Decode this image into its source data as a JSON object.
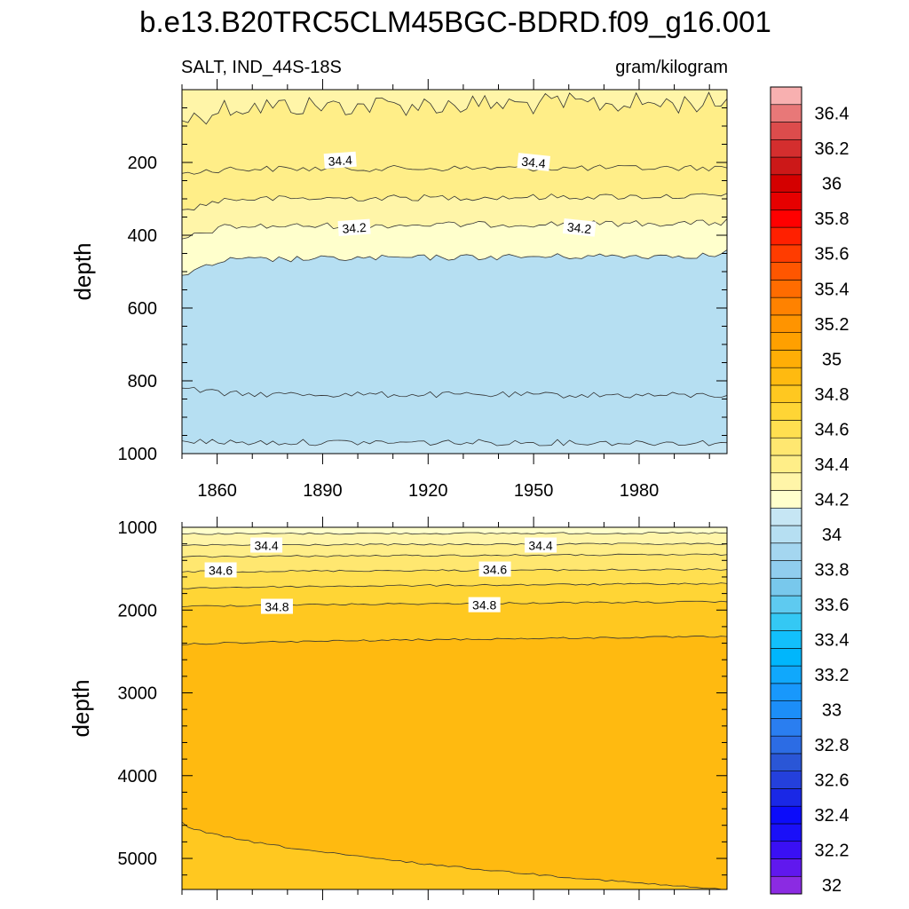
{
  "title": "b.e13.B20TRC5CLM45BGC-BDRD.f09_g16.001",
  "chart_data": [
    {
      "type": "contour",
      "panel": "upper",
      "left_string": "SALT, IND_44S-18S",
      "right_string": "gram/kilogram",
      "ylabel": "depth",
      "xlabel": "",
      "xlim": [
        1850,
        2005
      ],
      "ylim": [
        0,
        1000
      ],
      "y_reversed": true,
      "x_ticks": [
        1860,
        1890,
        1920,
        1950,
        1980
      ],
      "y_ticks": [
        200,
        400,
        600,
        800,
        1000
      ],
      "contour_lines": [
        {
          "level": 34.4,
          "depth_start": 85,
          "depth_end": 25,
          "depth_mean": 40
        },
        {
          "level": 34.4,
          "depth_start": 230,
          "depth_end": 215,
          "depth_mean": 215
        },
        {
          "level": 34.3,
          "depth_start": 330,
          "depth_end": 285,
          "depth_mean": 295
        },
        {
          "level": 34.2,
          "depth_start": 410,
          "depth_end": 355,
          "depth_mean": 370
        },
        {
          "level": 34.1,
          "depth_start": 510,
          "depth_end": 440,
          "depth_mean": 460
        },
        {
          "level": 34.1,
          "depth_start": 820,
          "depth_end": 840,
          "depth_mean": 840
        },
        {
          "level": 34.2,
          "depth_start": 965,
          "depth_end": 970,
          "depth_mean": 970
        }
      ],
      "contour_labels": [
        {
          "text": "34.4",
          "x": 1895,
          "depth": 195
        },
        {
          "text": "34.4",
          "x": 1950,
          "depth": 200
        },
        {
          "text": "34.2",
          "x": 1899,
          "depth": 380
        },
        {
          "text": "34.2",
          "x": 1963,
          "depth": 380
        }
      ]
    },
    {
      "type": "contour",
      "panel": "lower",
      "ylabel": "depth",
      "xlabel": "",
      "xlim": [
        1850,
        2005
      ],
      "ylim": [
        1000,
        5375
      ],
      "y_reversed": true,
      "y_ticks": [
        1000,
        2000,
        3000,
        4000,
        5000
      ],
      "contour_lines": [
        {
          "level": 34.3,
          "depth_start": 1080,
          "depth_end": 1070
        },
        {
          "level": 34.4,
          "depth_start": 1220,
          "depth_end": 1200
        },
        {
          "level": 34.5,
          "depth_start": 1360,
          "depth_end": 1330
        },
        {
          "level": 34.6,
          "depth_start": 1540,
          "depth_end": 1510
        },
        {
          "level": 34.7,
          "depth_start": 1740,
          "depth_end": 1680
        },
        {
          "level": 34.8,
          "depth_start": 1960,
          "depth_end": 1900
        },
        {
          "level": 34.9,
          "depth_start": 2420,
          "depth_end": 2320
        },
        {
          "level": 34.8,
          "depth_start": 4560,
          "depth_end": 5380
        }
      ],
      "contour_labels": [
        {
          "text": "34.4",
          "x": 1874,
          "depth": 1220
        },
        {
          "text": "34.4",
          "x": 1952,
          "depth": 1220
        },
        {
          "text": "34.6",
          "x": 1861,
          "depth": 1520
        },
        {
          "text": "34.6",
          "x": 1939,
          "depth": 1510
        },
        {
          "text": "34.8",
          "x": 1877,
          "depth": 1960
        },
        {
          "text": "34.8",
          "x": 1936,
          "depth": 1940
        }
      ]
    }
  ],
  "colorbar": {
    "levels": [
      32,
      32.1,
      32.2,
      32.3,
      32.4,
      32.5,
      32.6,
      32.7,
      32.8,
      32.9,
      33,
      33.1,
      33.2,
      33.3,
      33.4,
      33.5,
      33.6,
      33.7,
      33.8,
      33.9,
      34,
      34.1,
      34.2,
      34.3,
      34.4,
      34.5,
      34.6,
      34.7,
      34.8,
      34.9,
      35,
      35.1,
      35.2,
      35.3,
      35.4,
      35.5,
      35.6,
      35.7,
      35.8,
      35.9,
      36,
      36.1,
      36.2,
      36.3,
      36.4,
      36.5
    ],
    "labels": [
      "32",
      "32.2",
      "32.4",
      "32.6",
      "32.8",
      "33",
      "33.2",
      "33.4",
      "33.6",
      "33.8",
      "34",
      "34.2",
      "34.4",
      "34.6",
      "34.8",
      "35",
      "35.2",
      "35.4",
      "35.6",
      "35.8",
      "36",
      "36.2",
      "36.4"
    ],
    "colors": [
      "#8b2be2",
      "#6018ee",
      "#3a10f4",
      "#1a10f8",
      "#0c0cfa",
      "#1a28e6",
      "#2440dc",
      "#2a56d6",
      "#2c6ce4",
      "#2a7ef0",
      "#1c8ef8",
      "#1898fc",
      "#10a8fc",
      "#00b6fc",
      "#12c0fc",
      "#34c8f4",
      "#5ecaf0",
      "#78c8ec",
      "#90cdee",
      "#a4d6f0",
      "#b6dff2",
      "#c6e6f4",
      "#ffffcc",
      "#fff5a8",
      "#ffee88",
      "#ffe770",
      "#ffdf50",
      "#ffd535",
      "#ffc820",
      "#ffba10",
      "#ffae06",
      "#ffa000",
      "#ff9400",
      "#ff8200",
      "#ff6c00",
      "#ff5600",
      "#ff3c00",
      "#ff2000",
      "#ff0000",
      "#e60000",
      "#d40000",
      "#cc1818",
      "#d42e2e",
      "#dc4c4c",
      "#e87878",
      "#f8b0b0"
    ]
  }
}
